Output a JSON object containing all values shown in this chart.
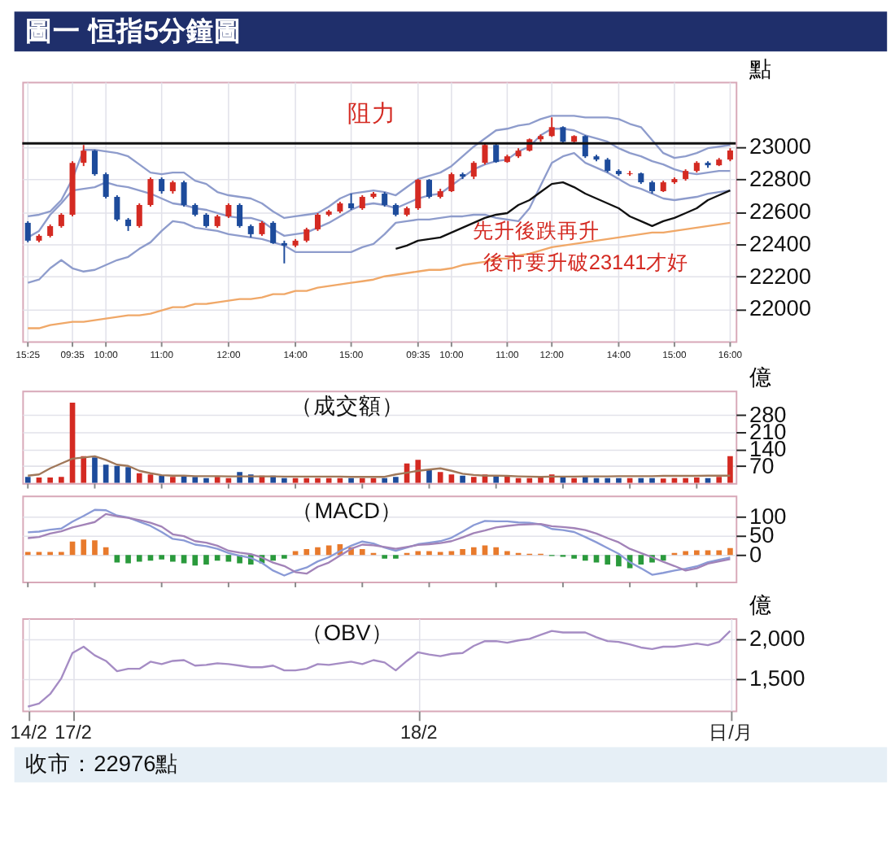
{
  "chart_data": [
    {
      "type": "candlestick",
      "title": "圖一 恒指5分鐘圖",
      "ylabel": "點",
      "categories": [
        "15:25",
        null,
        null,
        null,
        "09:35",
        null,
        null,
        "10:00",
        null,
        null,
        null,
        null,
        "11:00",
        null,
        null,
        null,
        null,
        null,
        "12:00",
        null,
        null,
        null,
        null,
        null,
        "14:00",
        null,
        null,
        null,
        null,
        "15:00",
        null,
        null,
        null,
        null,
        null,
        "09:35",
        null,
        null,
        "10:00",
        null,
        null,
        null,
        null,
        "11:00",
        null,
        null,
        null,
        "12:00",
        null,
        null,
        null,
        null,
        null,
        "14:00",
        null,
        null,
        null,
        null,
        "15:00",
        null,
        null,
        null,
        null,
        "16:00"
      ],
      "ohlc": [
        [
          22530,
          22540,
          22410,
          22420
        ],
        [
          22420,
          22460,
          22410,
          22450
        ],
        [
          22450,
          22520,
          22440,
          22510
        ],
        [
          22510,
          22590,
          22500,
          22580
        ],
        [
          22580,
          22910,
          22570,
          22900
        ],
        [
          22900,
          23010,
          22880,
          22975
        ],
        [
          22975,
          22980,
          22820,
          22830
        ],
        [
          22830,
          22840,
          22680,
          22690
        ],
        [
          22690,
          22700,
          22540,
          22550
        ],
        [
          22550,
          22560,
          22480,
          22510
        ],
        [
          22510,
          22650,
          22500,
          22640
        ],
        [
          22640,
          22810,
          22630,
          22800
        ],
        [
          22800,
          22810,
          22710,
          22725
        ],
        [
          22725,
          22790,
          22710,
          22780
        ],
        [
          22780,
          22790,
          22630,
          22640
        ],
        [
          22640,
          22650,
          22570,
          22580
        ],
        [
          22580,
          22590,
          22500,
          22510
        ],
        [
          22510,
          22580,
          22500,
          22570
        ],
        [
          22570,
          22650,
          22560,
          22640
        ],
        [
          22640,
          22650,
          22500,
          22510
        ],
        [
          22510,
          22520,
          22440,
          22460
        ],
        [
          22460,
          22540,
          22450,
          22530
        ],
        [
          22530,
          22540,
          22400,
          22405
        ],
        [
          22405,
          22420,
          22280,
          22390
        ],
        [
          22390,
          22430,
          22380,
          22420
        ],
        [
          22420,
          22500,
          22410,
          22490
        ],
        [
          22490,
          22590,
          22480,
          22580
        ],
        [
          22580,
          22610,
          22570,
          22600
        ],
        [
          22600,
          22660,
          22590,
          22650
        ],
        [
          22650,
          22710,
          22610,
          22620
        ],
        [
          22620,
          22700,
          22610,
          22690
        ],
        [
          22690,
          22720,
          22680,
          22710
        ],
        [
          22710,
          22720,
          22630,
          22640
        ],
        [
          22640,
          22650,
          22570,
          22580
        ],
        [
          22580,
          22630,
          22570,
          22620
        ],
        [
          22620,
          22800,
          22610,
          22795
        ],
        [
          22795,
          22800,
          22680,
          22690
        ],
        [
          22690,
          22740,
          22680,
          22725
        ],
        [
          22725,
          22840,
          22720,
          22830
        ],
        [
          22830,
          22840,
          22800,
          22815
        ],
        [
          22815,
          22910,
          22800,
          22900
        ],
        [
          22900,
          23020,
          22890,
          23010
        ],
        [
          23010,
          23020,
          22900,
          22905
        ],
        [
          22905,
          22950,
          22900,
          22940
        ],
        [
          22940,
          22990,
          22930,
          22975
        ],
        [
          22975,
          23050,
          22970,
          23045
        ],
        [
          23045,
          23075,
          23030,
          23065
        ],
        [
          23065,
          23180,
          23060,
          23120
        ],
        [
          23120,
          23125,
          23020,
          23030
        ],
        [
          23030,
          23070,
          23020,
          23065
        ],
        [
          23065,
          23070,
          22930,
          22940
        ],
        [
          22940,
          22950,
          22910,
          22920
        ],
        [
          22920,
          22930,
          22840,
          22850
        ],
        [
          22850,
          22860,
          22820,
          22830
        ],
        [
          22830,
          22850,
          22820,
          22835
        ],
        [
          22835,
          22840,
          22770,
          22780
        ],
        [
          22780,
          22790,
          22710,
          22725
        ],
        [
          22725,
          22790,
          22720,
          22780
        ],
        [
          22780,
          22810,
          22770,
          22800
        ],
        [
          22800,
          22860,
          22790,
          22850
        ],
        [
          22850,
          22910,
          22840,
          22900
        ],
        [
          22900,
          22910,
          22870,
          22885
        ],
        [
          22885,
          22930,
          22880,
          22920
        ],
        [
          22920,
          22990,
          22910,
          22976
        ]
      ],
      "colors": [
        "#1d4b9b",
        "#d42a22",
        "#d42a22",
        "#d42a22",
        "#d42a22",
        "#d42a22",
        "#1d4b9b",
        "#1d4b9b",
        "#1d4b9b",
        "#1d4b9b",
        "#d42a22",
        "#d42a22",
        "#1d4b9b",
        "#d42a22",
        "#1d4b9b",
        "#1d4b9b",
        "#1d4b9b",
        "#d42a22",
        "#d42a22",
        "#1d4b9b",
        "#1d4b9b",
        "#d42a22",
        "#1d4b9b",
        "#1d4b9b",
        "#d42a22",
        "#d42a22",
        "#d42a22",
        "#d42a22",
        "#d42a22",
        "#1d4b9b",
        "#d42a22",
        "#d42a22",
        "#1d4b9b",
        "#1d4b9b",
        "#d42a22",
        "#d42a22",
        "#1d4b9b",
        "#d42a22",
        "#d42a22",
        "#1d4b9b",
        "#d42a22",
        "#d42a22",
        "#1d4b9b",
        "#d42a22",
        "#d42a22",
        "#d42a22",
        "#d42a22",
        "#d42a22",
        "#1d4b9b",
        "#d42a22",
        "#1d4b9b",
        "#1d4b9b",
        "#1d4b9b",
        "#1d4b9b",
        "#d42a22",
        "#1d4b9b",
        "#1d4b9b",
        "#d42a22",
        "#d42a22",
        "#d42a22",
        "#d42a22",
        "#1d4b9b",
        "#d42a22",
        "#d42a22"
      ],
      "series": [
        {
          "type": "line",
          "color": "#8e9ccc",
          "values": [
            22570,
            22580,
            22600,
            22670,
            22800,
            22980,
            22980,
            22970,
            22960,
            22940,
            22890,
            22840,
            22830,
            22840,
            22840,
            22790,
            22770,
            22720,
            22700,
            22690,
            22680,
            22650,
            22600,
            22560,
            22570,
            22580,
            22590,
            22630,
            22680,
            22710,
            22720,
            22730,
            22720,
            22700,
            22750,
            22800,
            22820,
            22840,
            22880,
            22940,
            23000,
            23050,
            23100,
            23110,
            23130,
            23140,
            23170,
            23190,
            23190,
            23190,
            23180,
            23180,
            23180,
            23170,
            23140,
            23120,
            23040,
            22960,
            22930,
            22940,
            22960,
            22990,
            23000,
            23010
          ]
        },
        {
          "type": "line",
          "color": "#8e9ccc",
          "values": [
            22440,
            22480,
            22580,
            22650,
            22730,
            22740,
            22750,
            22780,
            22760,
            22750,
            22730,
            22710,
            22680,
            22650,
            22640,
            22620,
            22610,
            22590,
            22570,
            22560,
            22560,
            22540,
            22490,
            22450,
            22460,
            22470,
            22500,
            22530,
            22570,
            22610,
            22640,
            22650,
            22640,
            22620,
            22650,
            22680,
            22700,
            22710,
            22760,
            22810,
            22860,
            22890,
            22910,
            22920,
            22970,
            23000,
            23070,
            23110,
            23110,
            23100,
            23070,
            23050,
            23030,
            22990,
            22960,
            22940,
            22910,
            22890,
            22860,
            22840,
            22830,
            22840,
            22850,
            22850
          ]
        },
        {
          "type": "line",
          "color": "#8e9ccc",
          "values": [
            22160,
            22180,
            22250,
            22300,
            22250,
            22230,
            22240,
            22270,
            22300,
            22320,
            22370,
            22410,
            22480,
            22540,
            22530,
            22500,
            22490,
            22480,
            22460,
            22450,
            22440,
            22430,
            22410,
            22390,
            22350,
            22350,
            22350,
            22350,
            22350,
            22350,
            22380,
            22400,
            22460,
            22530,
            22540,
            22550,
            22550,
            22560,
            22570,
            22570,
            22580,
            22580,
            22560,
            22550,
            22540,
            22620,
            22760,
            22900,
            22940,
            22960,
            22900,
            22870,
            22840,
            22800,
            22760,
            22740,
            22710,
            22680,
            22670,
            22680,
            22690,
            22710,
            22720,
            22730
          ]
        },
        {
          "type": "line",
          "color": "#f0a868",
          "values": [
            21880,
            21880,
            21900,
            21910,
            21920,
            21920,
            21930,
            21940,
            21950,
            21960,
            21960,
            21970,
            21990,
            22010,
            22010,
            22030,
            22030,
            22040,
            22050,
            22060,
            22060,
            22070,
            22090,
            22090,
            22110,
            22110,
            22130,
            22140,
            22150,
            22160,
            22170,
            22180,
            22200,
            22210,
            22220,
            22230,
            22240,
            22240,
            22250,
            22270,
            22280,
            22290,
            22310,
            22310,
            22330,
            22340,
            22360,
            22380,
            22390,
            22400,
            22410,
            22420,
            22430,
            22440,
            22450,
            22460,
            22470,
            22470,
            22480,
            22490,
            22500,
            22510,
            22520,
            22530
          ]
        },
        {
          "type": "line",
          "color": "#111111",
          "values": [
            null,
            null,
            null,
            null,
            null,
            null,
            null,
            null,
            null,
            null,
            null,
            null,
            null,
            null,
            null,
            null,
            null,
            null,
            null,
            null,
            null,
            null,
            null,
            null,
            null,
            null,
            null,
            null,
            null,
            null,
            null,
            null,
            null,
            22370,
            22390,
            22420,
            22430,
            22440,
            22470,
            22500,
            22530,
            22560,
            22580,
            22590,
            22640,
            22670,
            22720,
            22770,
            22780,
            22750,
            22710,
            22680,
            22650,
            22620,
            22570,
            22540,
            22510,
            22540,
            22560,
            22590,
            22620,
            22670,
            22700,
            22730
          ]
        }
      ],
      "ref_lines": [
        {
          "axis": "y",
          "value": 23020,
          "color": "#111111"
        }
      ],
      "annotations": [
        "阻力",
        "先升後跌再升",
        "後市要升破23141才好"
      ],
      "ylim": [
        21800,
        23400
      ],
      "yticks": [
        22000,
        22200,
        22400,
        22600,
        22800,
        23000
      ],
      "grid": true
    },
    {
      "type": "bar",
      "title": "（成交額）",
      "ylabel": "億",
      "categories": [
        null,
        null,
        null,
        null,
        null,
        null,
        null,
        null,
        null,
        null,
        null,
        null,
        null,
        null,
        null,
        null,
        null,
        null,
        null,
        null,
        null,
        null,
        null,
        null,
        null,
        null,
        null,
        null,
        null,
        null,
        null,
        null,
        null,
        null,
        null,
        null,
        null,
        null,
        null,
        null,
        null,
        null,
        null,
        null,
        null,
        null,
        null,
        null,
        null,
        null,
        null,
        null,
        null,
        null,
        null,
        null,
        null,
        null,
        null,
        null,
        null,
        null,
        null,
        null
      ],
      "series": [
        {
          "type": "bar",
          "values": [
            25,
            22,
            22,
            25,
            330,
            110,
            105,
            75,
            70,
            65,
            40,
            35,
            30,
            25,
            30,
            25,
            20,
            25,
            20,
            45,
            35,
            30,
            30,
            20,
            20,
            20,
            20,
            20,
            20,
            20,
            20,
            20,
            20,
            25,
            80,
            95,
            55,
            45,
            35,
            30,
            25,
            35,
            30,
            30,
            20,
            20,
            25,
            35,
            25,
            20,
            25,
            20,
            20,
            20,
            20,
            20,
            20,
            18,
            20,
            20,
            22,
            20,
            25,
            110
          ],
          "colors": [
            "#1d4b9b",
            "#d42a22",
            "#d42a22",
            "#d42a22",
            "#d42a22",
            "#d42a22",
            "#1d4b9b",
            "#1d4b9b",
            "#1d4b9b",
            "#1d4b9b",
            "#d42a22",
            "#d42a22",
            "#1d4b9b",
            "#d42a22",
            "#1d4b9b",
            "#1d4b9b",
            "#1d4b9b",
            "#d42a22",
            "#d42a22",
            "#1d4b9b",
            "#1d4b9b",
            "#d42a22",
            "#1d4b9b",
            "#1d4b9b",
            "#d42a22",
            "#d42a22",
            "#d42a22",
            "#d42a22",
            "#d42a22",
            "#1d4b9b",
            "#d42a22",
            "#d42a22",
            "#1d4b9b",
            "#1d4b9b",
            "#d42a22",
            "#d42a22",
            "#1d4b9b",
            "#d42a22",
            "#d42a22",
            "#1d4b9b",
            "#d42a22",
            "#d42a22",
            "#1d4b9b",
            "#d42a22",
            "#d42a22",
            "#d42a22",
            "#d42a22",
            "#d42a22",
            "#1d4b9b",
            "#d42a22",
            "#1d4b9b",
            "#1d4b9b",
            "#1d4b9b",
            "#1d4b9b",
            "#d42a22",
            "#1d4b9b",
            "#1d4b9b",
            "#d42a22",
            "#d42a22",
            "#d42a22",
            "#d42a22",
            "#1d4b9b",
            "#d42a22",
            "#d42a22"
          ]
        },
        {
          "type": "line",
          "color": "#a0785a",
          "values": [
            30,
            35,
            60,
            80,
            100,
            105,
            110,
            95,
            75,
            70,
            50,
            40,
            32,
            30,
            30,
            28,
            28,
            28,
            27,
            27,
            27,
            27,
            27,
            26,
            26,
            26,
            26,
            26,
            26,
            25,
            25,
            25,
            25,
            35,
            42,
            50,
            55,
            60,
            50,
            38,
            33,
            30,
            30,
            29,
            27,
            26,
            25,
            26,
            26,
            26,
            27,
            27,
            27,
            28,
            28,
            28,
            28,
            29,
            29,
            29,
            29,
            30,
            30,
            30
          ]
        }
      ],
      "ylim": [
        0,
        380
      ],
      "yticks": [
        70,
        140,
        210,
        280
      ],
      "tick_labels": "y",
      "grid": "y"
    },
    {
      "type": "bar",
      "title": "（MACD）",
      "categories": [
        null,
        null,
        null,
        null,
        null,
        null,
        null,
        null,
        null,
        null,
        null,
        null,
        null,
        null,
        null,
        null,
        null,
        null,
        null,
        null,
        null,
        null,
        null,
        null,
        null,
        null,
        null,
        null,
        null,
        null,
        null,
        null,
        null,
        null,
        null,
        null,
        null,
        null,
        null,
        null,
        null,
        null,
        null,
        null,
        null,
        null,
        null,
        null,
        null,
        null,
        null,
        null,
        null,
        null,
        null,
        null,
        null,
        null,
        null,
        null,
        null,
        null,
        null,
        null
      ],
      "series": [
        {
          "type": "bar",
          "values": [
            8,
            8,
            8,
            8,
            35,
            40,
            38,
            20,
            -20,
            -22,
            -18,
            -15,
            -12,
            -18,
            -22,
            -28,
            -25,
            -15,
            -18,
            -22,
            -25,
            -22,
            -15,
            -10,
            10,
            15,
            20,
            25,
            28,
            20,
            15,
            5,
            -10,
            -10,
            5,
            10,
            10,
            8,
            10,
            15,
            20,
            25,
            20,
            10,
            5,
            3,
            3,
            -3,
            -5,
            -10,
            -15,
            -20,
            -25,
            -30,
            -35,
            -25,
            -20,
            -15,
            5,
            10,
            12,
            12,
            12,
            18
          ],
          "colors": [
            "#e87a2c",
            "#e87a2c",
            "#e87a2c",
            "#e87a2c",
            "#e87a2c",
            "#e87a2c",
            "#e87a2c",
            "#e87a2c",
            "#2a9a3c",
            "#2a9a3c",
            "#2a9a3c",
            "#2a9a3c",
            "#2a9a3c",
            "#2a9a3c",
            "#2a9a3c",
            "#2a9a3c",
            "#2a9a3c",
            "#2a9a3c",
            "#2a9a3c",
            "#2a9a3c",
            "#2a9a3c",
            "#2a9a3c",
            "#2a9a3c",
            "#2a9a3c",
            "#e87a2c",
            "#e87a2c",
            "#e87a2c",
            "#e87a2c",
            "#e87a2c",
            "#e87a2c",
            "#e87a2c",
            "#e87a2c",
            "#2a9a3c",
            "#2a9a3c",
            "#e87a2c",
            "#e87a2c",
            "#e87a2c",
            "#e87a2c",
            "#e87a2c",
            "#e87a2c",
            "#e87a2c",
            "#e87a2c",
            "#e87a2c",
            "#e87a2c",
            "#e87a2c",
            "#e87a2c",
            "#e87a2c",
            "#2a9a3c",
            "#2a9a3c",
            "#2a9a3c",
            "#2a9a3c",
            "#2a9a3c",
            "#2a9a3c",
            "#2a9a3c",
            "#2a9a3c",
            "#2a9a3c",
            "#2a9a3c",
            "#2a9a3c",
            "#e87a2c",
            "#e87a2c",
            "#e87a2c",
            "#e87a2c",
            "#e87a2c",
            "#e87a2c"
          ]
        },
        {
          "type": "line",
          "color": "#8a9ad6",
          "values": [
            59,
            61,
            66,
            69,
            87,
            102,
            118,
            117,
            103,
            98,
            87,
            76,
            60,
            42,
            38,
            27,
            23,
            16,
            5,
            -2,
            -8,
            -21,
            -41,
            -54,
            -42,
            -33,
            -17,
            -6,
            10,
            24,
            35,
            30,
            19,
            11,
            19,
            28,
            32,
            36,
            45,
            61,
            78,
            89,
            88,
            88,
            85,
            84,
            80,
            68,
            65,
            60,
            47,
            33,
            18,
            3,
            -19,
            -35,
            -52,
            -47,
            -41,
            -36,
            -30,
            -19,
            -13,
            -7
          ]
        },
        {
          "type": "line",
          "color": "#a283b8",
          "values": [
            44,
            47,
            56,
            62,
            72,
            79,
            86,
            107,
            101,
            97,
            91,
            84,
            74,
            54,
            49,
            36,
            32,
            24,
            11,
            6,
            2,
            -7,
            -20,
            -29,
            -45,
            -49,
            -31,
            -20,
            -2,
            16,
            27,
            25,
            21,
            16,
            21,
            26,
            28,
            31,
            36,
            46,
            57,
            64,
            72,
            76,
            79,
            80,
            81,
            75,
            73,
            70,
            65,
            56,
            44,
            33,
            16,
            5,
            -6,
            -18,
            -29,
            -41,
            -35,
            -23,
            -17,
            -11
          ]
        }
      ],
      "ylim": [
        -70,
        155
      ],
      "yticks": [
        0,
        50,
        100
      ],
      "tick_labels": "y",
      "grid": "y"
    },
    {
      "type": "line",
      "title": "（OBV）",
      "ylabel": "億",
      "categories": [
        "14/2",
        null,
        null,
        null,
        "17/2",
        null,
        null,
        null,
        null,
        null,
        null,
        null,
        null,
        null,
        null,
        null,
        null,
        null,
        null,
        null,
        null,
        null,
        null,
        null,
        null,
        null,
        null,
        null,
        null,
        null,
        null,
        null,
        null,
        null,
        null,
        "18/2",
        null,
        null,
        null,
        null,
        null,
        null,
        null,
        null,
        null,
        null,
        null,
        null,
        null,
        null,
        null,
        null,
        null,
        null,
        null,
        null,
        null,
        null,
        null,
        null,
        null,
        null,
        null,
        "日/月"
      ],
      "series": [
        {
          "type": "line",
          "color": "#a58cc4",
          "values": [
            1140,
            1180,
            1300,
            1500,
            1820,
            1900,
            1790,
            1720,
            1590,
            1620,
            1620,
            1710,
            1680,
            1720,
            1730,
            1660,
            1670,
            1690,
            1680,
            1660,
            1640,
            1640,
            1660,
            1600,
            1600,
            1620,
            1680,
            1670,
            1690,
            1710,
            1680,
            1730,
            1700,
            1600,
            1720,
            1830,
            1800,
            1780,
            1810,
            1820,
            1910,
            1970,
            1970,
            1950,
            1980,
            2000,
            2050,
            2100,
            2080,
            2080,
            2080,
            2020,
            1970,
            1960,
            1930,
            1890,
            1870,
            1900,
            1900,
            1920,
            1940,
            1920,
            1960,
            2100
          ]
        }
      ],
      "ylim": [
        1090,
        2260
      ],
      "yticks": [
        {
          "value": 1500,
          "label": "1,500"
        },
        {
          "value": 2000,
          "label": "2,000"
        }
      ],
      "grid": true,
      "annotations": [
        "收市：22976點"
      ]
    }
  ]
}
